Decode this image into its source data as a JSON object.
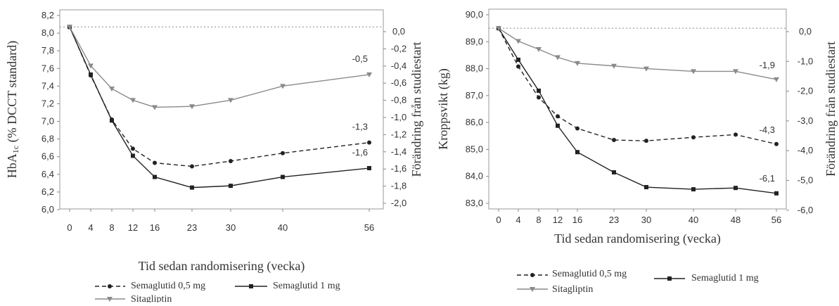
{
  "chart_data": [
    {
      "type": "line",
      "x": [
        0,
        4,
        8,
        12,
        16,
        23,
        30,
        40,
        56
      ],
      "x_tick_labels": [
        "0",
        "4",
        "8",
        "12",
        "16",
        "23",
        "30",
        "40",
        "56"
      ],
      "xlabel": "Tid sedan randomisering (vecka)",
      "ylabel": "HbA1c (% DCCT standard)",
      "ylabel_main": "HbA",
      "ylabel_sub": "1c",
      "ylabel_rest": " (% DCCT standard)",
      "ylabel_right": "Förändring från studiestart",
      "ylim": [
        6.0,
        8.2
      ],
      "y_ticks": [
        "6,0",
        "6,2",
        "6,4",
        "6,6",
        "6,8",
        "7,0",
        "7,2",
        "7,4",
        "7,6",
        "7,8",
        "8,0",
        "8,2"
      ],
      "y_right_ticks": [
        "0,0",
        "-0,2",
        "-0,4",
        "-0,6",
        "-0,8",
        "-1,0",
        "-1,2",
        "-1,4",
        "-1,6",
        "-1,8",
        "-2,0"
      ],
      "baseline": 8.07,
      "series": [
        {
          "name": "Semaglutid 0,5 mg",
          "color": "#222222",
          "dash": true,
          "marker": "circle",
          "values": [
            8.07,
            7.52,
            7.02,
            6.69,
            6.53,
            6.49,
            6.55,
            6.64,
            6.76
          ],
          "end_label": "-1,3"
        },
        {
          "name": "Semaglutid 1 mg",
          "color": "#222222",
          "dash": false,
          "marker": "square",
          "values": [
            8.07,
            7.53,
            7.01,
            6.61,
            6.37,
            6.25,
            6.27,
            6.37,
            6.47
          ],
          "end_label": "-1,6"
        },
        {
          "name": "Sitagliptin",
          "color": "#8a8a8a",
          "dash": false,
          "marker": "triangle-down",
          "values": [
            8.07,
            7.63,
            7.37,
            7.24,
            7.16,
            7.17,
            7.24,
            7.4,
            7.53
          ],
          "end_label": "-0,5"
        }
      ],
      "grid": false,
      "legend_position": "bottom"
    },
    {
      "type": "line",
      "x": [
        0,
        4,
        8,
        12,
        16,
        23,
        30,
        40,
        48,
        56
      ],
      "x_tick_labels": [
        "0",
        "4",
        "8",
        "12",
        "16",
        "23",
        "30",
        "40",
        "48",
        "56"
      ],
      "xlabel": "Tid sedan randomisering (vecka)",
      "ylabel": "Kroppsvikt (kg)",
      "ylabel_right": "Förändring från studiestart",
      "ylim": [
        83.0,
        90.0
      ],
      "y_ticks": [
        "83,0",
        "84,0",
        "85,0",
        "86,0",
        "87,0",
        "88,0",
        "89,0",
        "90,0"
      ],
      "y_right_ticks": [
        "0,0",
        "-1,0",
        "-2,0",
        "-3,0",
        "-4,0",
        "-5,0",
        "-6,0"
      ],
      "baseline": 89.5,
      "series": [
        {
          "name": "Semaglutid 0,5 mg",
          "color": "#222222",
          "dash": true,
          "marker": "circle",
          "values": [
            89.5,
            88.08,
            86.93,
            86.23,
            85.78,
            85.35,
            85.32,
            85.45,
            85.55,
            85.2
          ],
          "end_label": "-4,3"
        },
        {
          "name": "Semaglutid 1 mg",
          "color": "#222222",
          "dash": false,
          "marker": "square",
          "values": [
            89.5,
            88.33,
            87.18,
            85.88,
            84.9,
            84.15,
            83.6,
            83.52,
            83.57,
            83.37
          ],
          "end_label": "-6,1"
        },
        {
          "name": "Sitagliptin",
          "color": "#8a8a8a",
          "dash": false,
          "marker": "triangle-down",
          "values": [
            89.5,
            89.02,
            88.72,
            88.42,
            88.2,
            88.1,
            88.0,
            87.9,
            87.9,
            87.6
          ],
          "end_label": "-1,9"
        }
      ],
      "grid": false,
      "legend_position": "bottom"
    }
  ]
}
